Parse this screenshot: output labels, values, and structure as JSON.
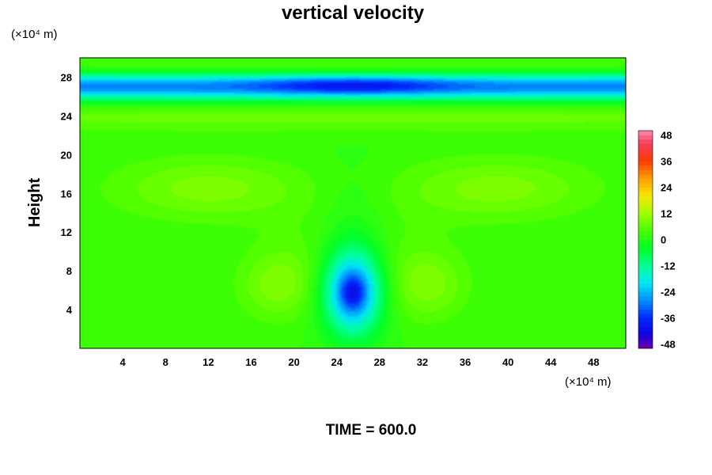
{
  "chart_data": {
    "type": "heatmap",
    "title": "vertical velocity",
    "ylabel": "Height",
    "xlabel": "",
    "x_unit_label": "(×10⁴ m)",
    "y_unit_label": "(×10⁴ m)",
    "xlim": [
      0,
      51
    ],
    "ylim": [
      0,
      30
    ],
    "x_ticks": [
      4,
      8,
      12,
      16,
      20,
      24,
      28,
      32,
      36,
      40,
      44,
      48
    ],
    "y_ticks": [
      4,
      8,
      12,
      16,
      20,
      24,
      28
    ],
    "colorbar": {
      "range": [
        -48,
        48
      ],
      "ticks": [
        48,
        36,
        24,
        12,
        0,
        -12,
        -24,
        -36,
        -48
      ],
      "levels": [
        -50,
        -48,
        -46,
        -44,
        -42,
        -40,
        -38,
        -36,
        -34,
        -32,
        -30,
        -28,
        -26,
        -24,
        -22,
        -20,
        -18,
        -16,
        -14,
        -12,
        -10,
        -8,
        -6,
        -4,
        -2,
        0,
        2,
        4,
        6,
        8,
        10,
        12,
        14,
        16,
        18,
        20,
        22,
        24,
        26,
        28,
        30,
        32,
        34,
        36,
        38,
        40,
        42,
        44,
        46,
        48,
        50
      ]
    },
    "features": [
      {
        "name": "upper negative band",
        "x": [
          0,
          51
        ],
        "y_center": 27.2,
        "value": -40
      },
      {
        "name": "strongest downdraft core",
        "x": 25.5,
        "y": 27.2,
        "value": -46
      },
      {
        "name": "low-level downdraft core",
        "x": 25.5,
        "y": 5.8,
        "value": -42
      },
      {
        "name": "lateral weak updrafts",
        "x": [
          18.5,
          32.5
        ],
        "y": 6.5,
        "value": 8
      },
      {
        "name": "mid-level weak updrafts",
        "x": [
          12,
          38
        ],
        "y": 16.5,
        "value": 10
      }
    ],
    "footer": "TIME = 600.0"
  }
}
